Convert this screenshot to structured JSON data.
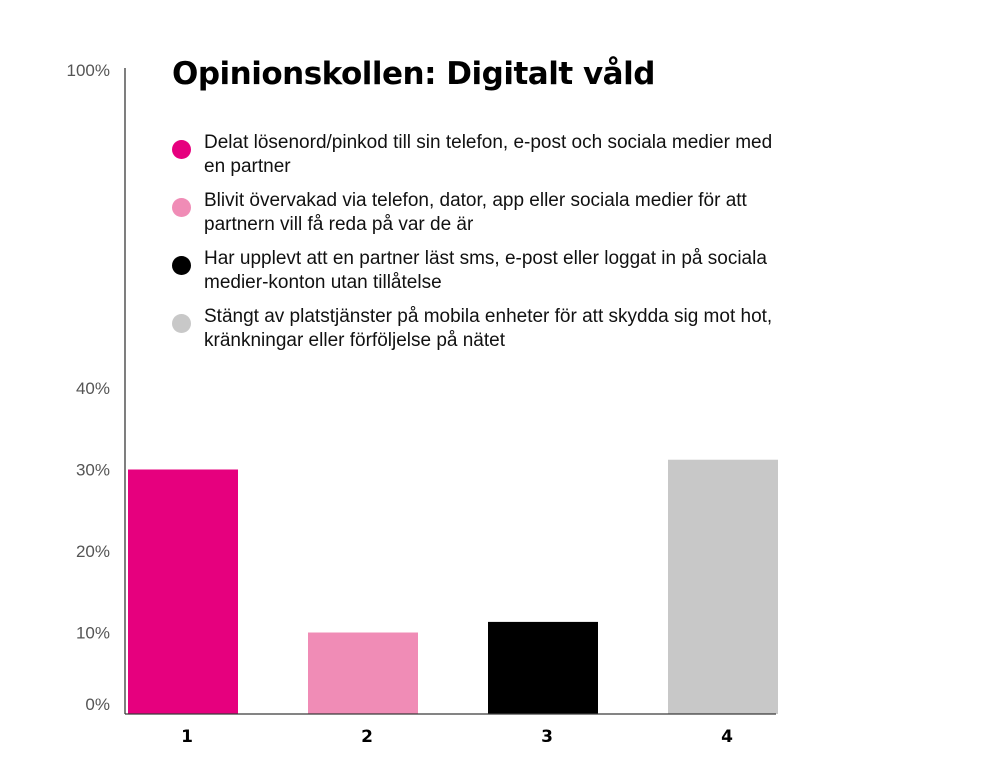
{
  "chart_data": {
    "type": "bar",
    "title": "Opinionskollen: Digitalt våld",
    "categories": [
      "1",
      "2",
      "3",
      "4"
    ],
    "values": [
      30,
      10,
      11.3,
      31.2
    ],
    "colors": [
      "#e6007e",
      "#f08cb6",
      "#000000",
      "#c8c8c8"
    ],
    "legend": [
      "Delat lösenord/pinkod till sin telefon, e-post och sociala medier med en partner",
      "Blivit övervakad via telefon, dator, app eller sociala medier för att partnern vill få reda på var de är",
      "Har upplevt att en partner läst sms, e-post eller loggat in på sociala medier-konton utan tillåtelse",
      "Stängt av platstjänster på mobila enheter för att skydda sig mot hot, kränkningar eller förföljelse på nätet"
    ],
    "legend_placement": "top",
    "y_ticks": [
      {
        "value": 0,
        "label": "0%"
      },
      {
        "value": 10,
        "label": "10%"
      },
      {
        "value": 20,
        "label": "20%"
      },
      {
        "value": 30,
        "label": "30%"
      },
      {
        "value": 40,
        "label": "40%"
      },
      {
        "value": 100,
        "label": "100%"
      }
    ],
    "ylim": [
      0,
      100
    ],
    "axis_break": "between 40% and 100%",
    "grid": false,
    "xlabel": "",
    "ylabel": ""
  }
}
